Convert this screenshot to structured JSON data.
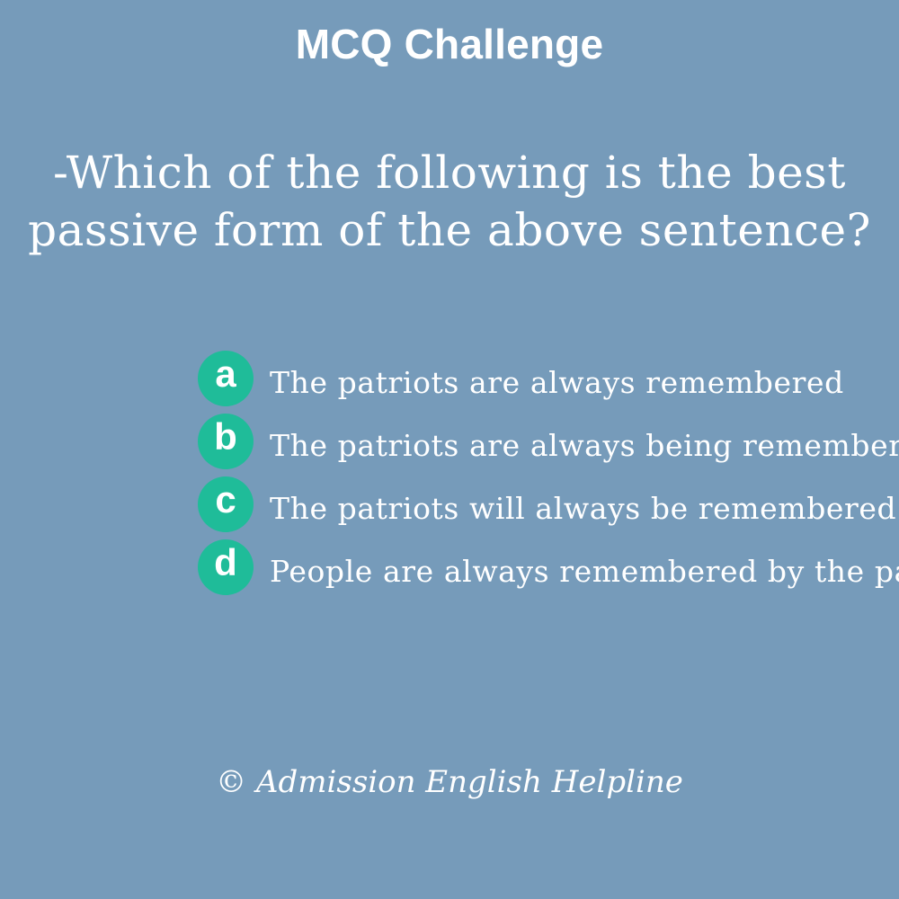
{
  "header": {
    "title": "MCQ Challenge"
  },
  "question": {
    "line1": "-Which of the following is the best",
    "line2": "passive form of the above sentence?"
  },
  "options": [
    {
      "letter": "a",
      "text": "The patriots are always remembered"
    },
    {
      "letter": "b",
      "text": "The patriots are always being remembered"
    },
    {
      "letter": "c",
      "text": "The patriots will always be remembered"
    },
    {
      "letter": "d",
      "text": "People are always remembered by the patriots"
    }
  ],
  "footer": {
    "copyright": "© Admission English Helpline"
  },
  "colors": {
    "background": "#769bba",
    "badge": "#1fbc99",
    "text": "#ffffff"
  }
}
